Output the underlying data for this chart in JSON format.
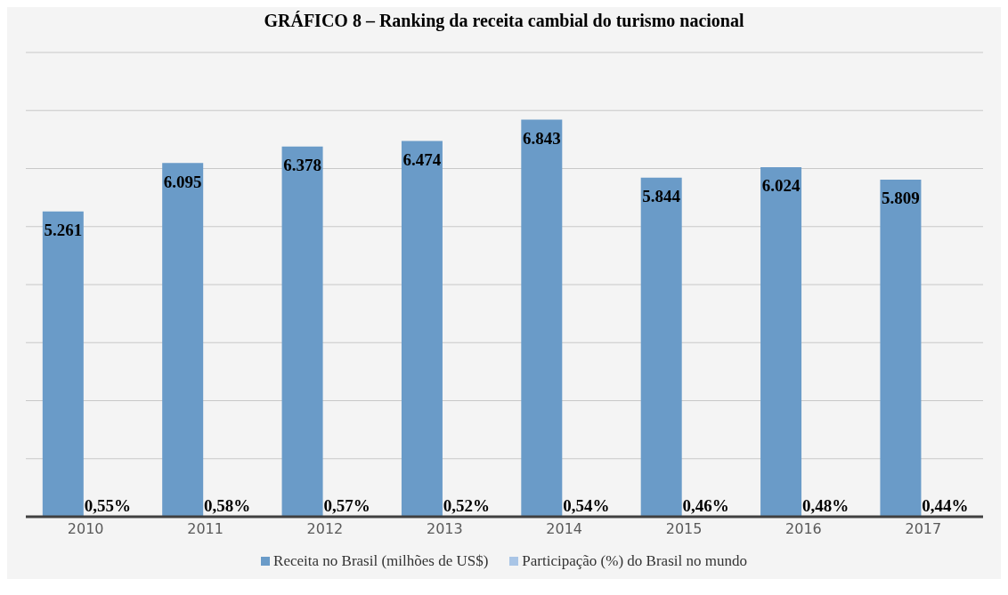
{
  "chart_data": {
    "type": "bar",
    "title": "GRÁFICO 8 – Ranking da receita cambial do turismo nacional",
    "categories": [
      "2010",
      "2011",
      "2012",
      "2013",
      "2014",
      "2015",
      "2016",
      "2017"
    ],
    "series": [
      {
        "name": "Receita no Brasil (milhões de US$)",
        "color": "#6a9bc8",
        "values": [
          5261,
          6095,
          6378,
          6474,
          6843,
          5844,
          6024,
          5809
        ],
        "value_labels": [
          "5.261",
          "6.095",
          "6.378",
          "6.474",
          "6.843",
          "5.844",
          "6.024",
          "5.809"
        ]
      },
      {
        "name": "Participação (%) do Brasil no mundo",
        "color": "#a9c5e6",
        "values": [
          0.55,
          0.58,
          0.57,
          0.52,
          0.54,
          0.46,
          0.48,
          0.44
        ],
        "value_labels": [
          "0,55%",
          "0,58%",
          "0,57%",
          "0,52%",
          "0,54%",
          "0,46%",
          "0,48%",
          "0,44%"
        ]
      }
    ],
    "ylim": [
      0,
      8000
    ],
    "tick_labels": "x",
    "grid": "y",
    "legend": "bottom"
  }
}
